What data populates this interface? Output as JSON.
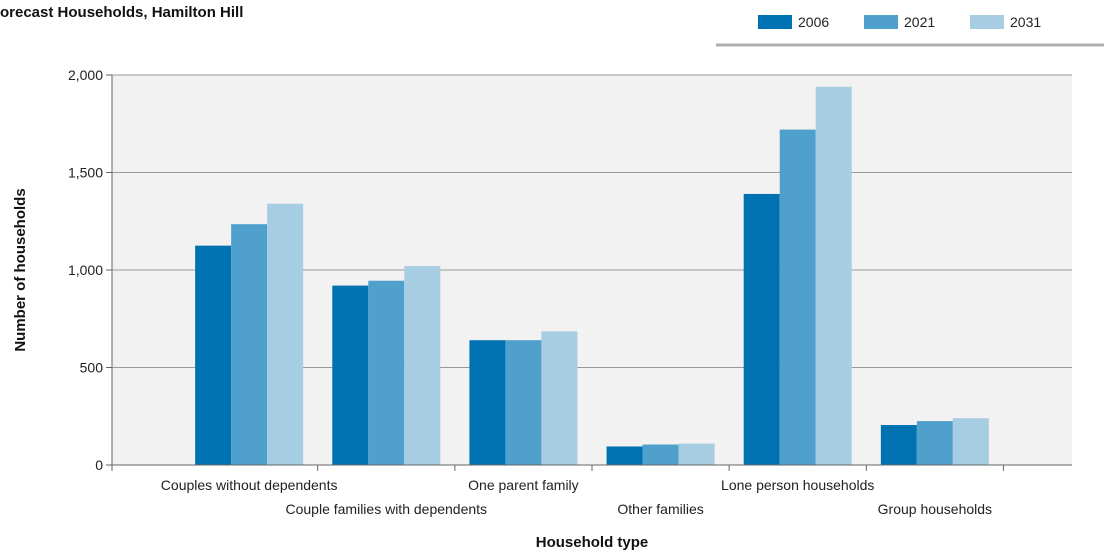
{
  "chart_data": {
    "type": "bar",
    "title": "orecast Households, Hamilton Hill",
    "xlabel": "Household type",
    "ylabel": "Number of households",
    "ylim": [
      0,
      2000
    ],
    "yticks": [
      "0",
      "500",
      "1,000",
      "1,500",
      "2,000"
    ],
    "ytick_values": [
      0,
      500,
      1000,
      1500,
      2000
    ],
    "grid": true,
    "legend_position": "top-right",
    "categories": [
      "Couples without dependents",
      "Couple families with dependents",
      "One parent family",
      "Other families",
      "Lone person households",
      "Group households"
    ],
    "series": [
      {
        "name": "2006",
        "color": "#0072b2",
        "values": [
          1125,
          920,
          640,
          95,
          1390,
          205
        ]
      },
      {
        "name": "2021",
        "color": "#4fa0cc",
        "values": [
          1235,
          945,
          640,
          105,
          1720,
          225
        ]
      },
      {
        "name": "2031",
        "color": "#a7cde3",
        "values": [
          1340,
          1020,
          685,
          110,
          1940,
          240
        ]
      }
    ]
  }
}
